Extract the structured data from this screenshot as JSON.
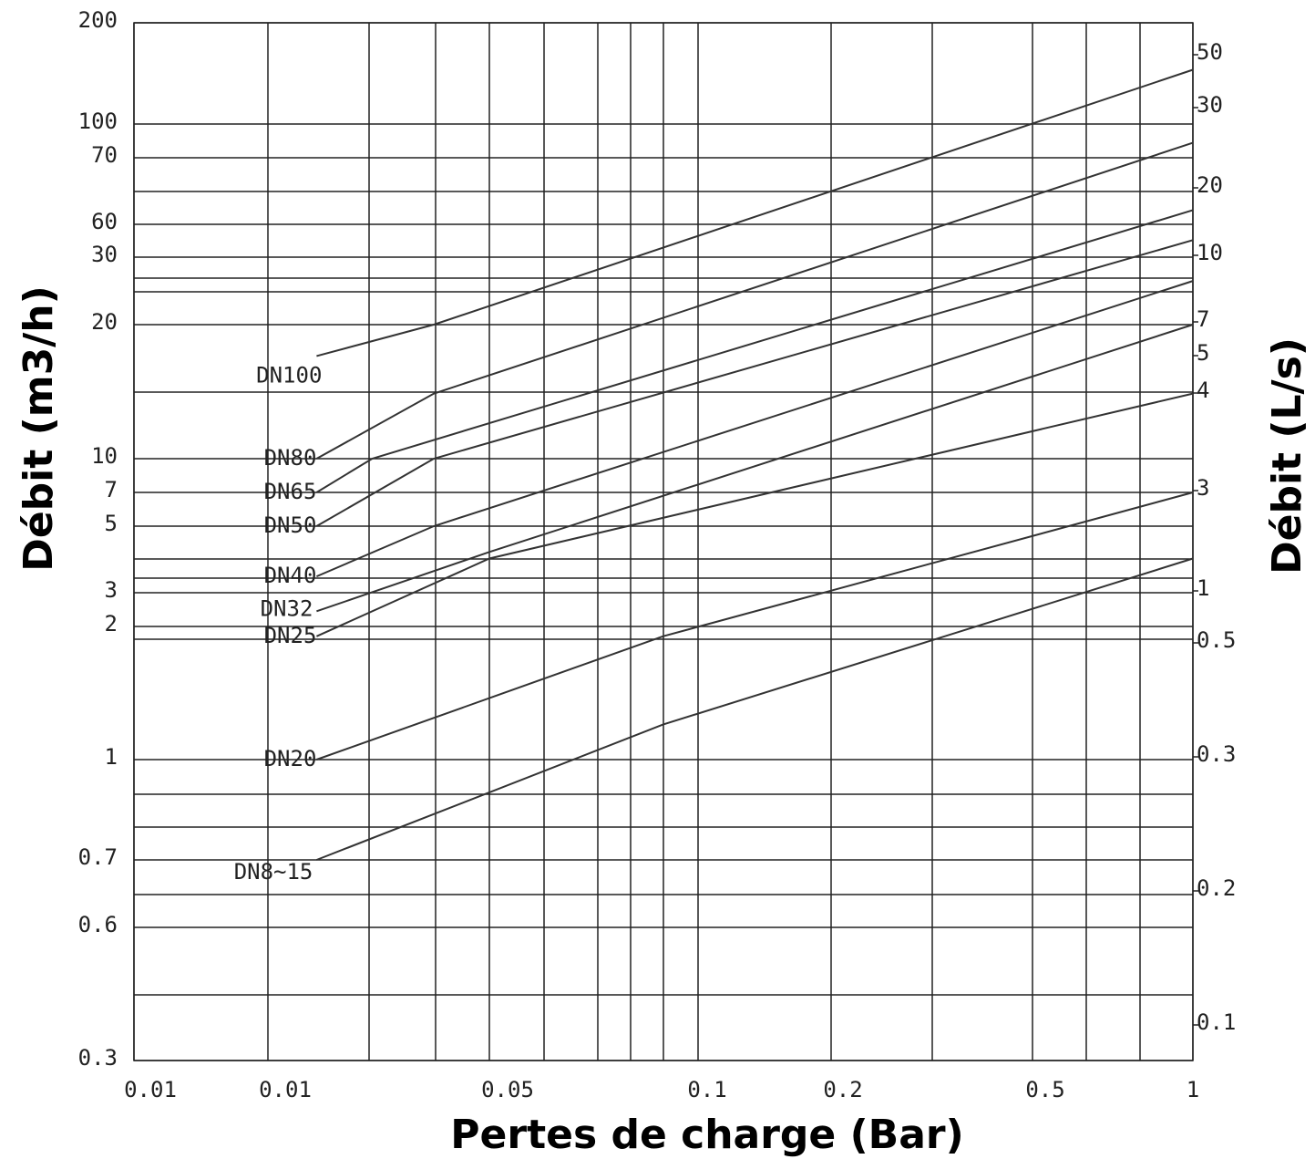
{
  "chart_data": {
    "type": "line",
    "xlabel": "Pertes de charge (Bar)",
    "ylabel": "Débit (m3/h)",
    "y2label": "Débit (L/s)",
    "xscale": "log",
    "yscale": "log",
    "grid": true,
    "color": "#333333",
    "xlim": [
      0.007,
      1
    ],
    "xticks": [
      {
        "value": 0.007,
        "label": "0.01"
      },
      {
        "value": 0.0135,
        "label": "0.01"
      },
      0.05,
      0.1,
      0.2,
      0.5,
      1
    ],
    "ylim": [
      0.3,
      200
    ],
    "yticks": [
      200,
      100,
      70,
      60,
      30,
      20,
      10,
      7,
      5,
      3,
      2,
      1,
      0.7,
      0.6,
      0.3
    ],
    "y2ticks": [
      50,
      30,
      20,
      10,
      7,
      5,
      4,
      3,
      1,
      0.5,
      0.3,
      0.2,
      0.1
    ],
    "series": [
      {
        "name": "DN100",
        "x": [
          0.018,
          0.036,
          1
        ],
        "values": [
          17,
          20,
          145
        ]
      },
      {
        "name": "DN80",
        "x": [
          0.018,
          0.036,
          1
        ],
        "values": [
          10,
          14,
          82
        ]
      },
      {
        "name": "DN65",
        "x": [
          0.018,
          0.025,
          1
        ],
        "values": [
          7,
          10,
          62
        ]
      },
      {
        "name": "DN50",
        "x": [
          0.018,
          0.036,
          1
        ],
        "values": [
          5,
          10,
          43
        ]
      },
      {
        "name": "DN40",
        "x": [
          0.018,
          0.036,
          1
        ],
        "values": [
          3.4,
          5,
          26
        ]
      },
      {
        "name": "DN32",
        "x": [
          0.018,
          0.05,
          1
        ],
        "values": [
          2.4,
          4.1,
          20
        ]
      },
      {
        "name": "DN25",
        "x": [
          0.018,
          0.05,
          1
        ],
        "values": [
          1.9,
          3.9,
          14
        ]
      },
      {
        "name": "DN20",
        "x": [
          0.018,
          0.089,
          1
        ],
        "values": [
          1,
          1.9,
          7
        ]
      },
      {
        "name": "DN8~15",
        "x": [
          0.018,
          0.089,
          1
        ],
        "values": [
          0.7,
          1.2,
          3.9
        ]
      }
    ]
  }
}
